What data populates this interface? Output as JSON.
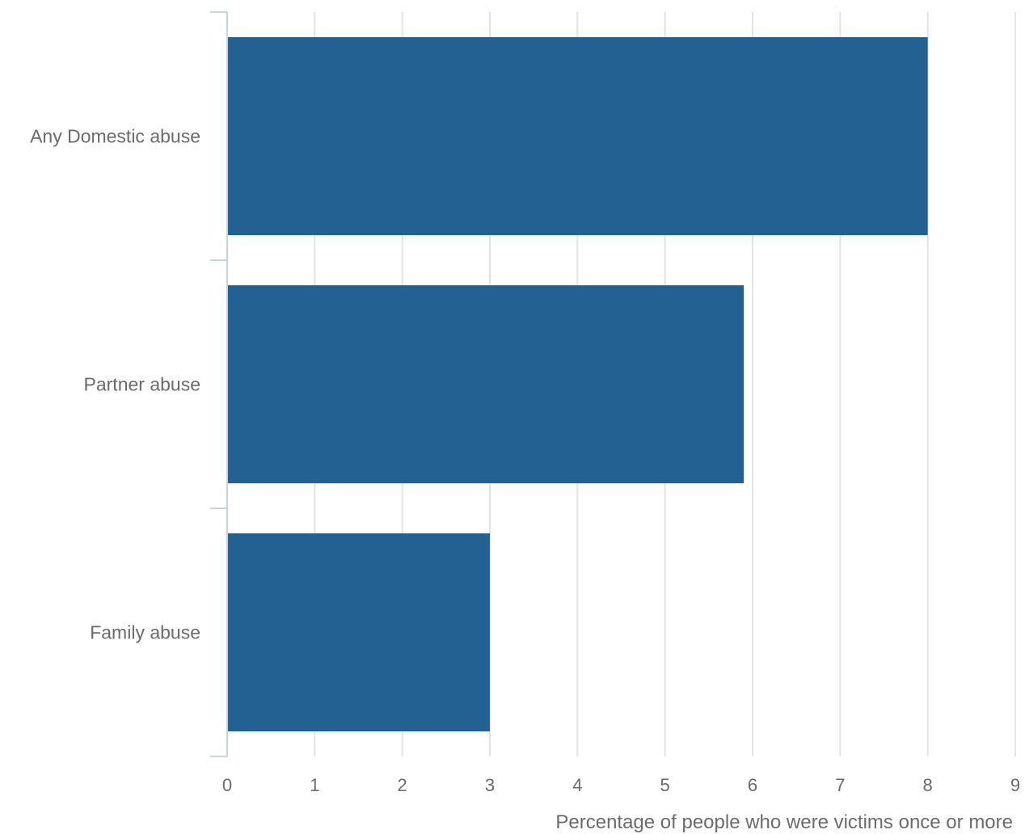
{
  "chart_data": {
    "type": "bar",
    "orientation": "horizontal",
    "categories": [
      "Any Domestic abuse",
      "Partner abuse",
      "Family abuse"
    ],
    "values": [
      8.0,
      5.9,
      3.0
    ],
    "title": "",
    "xlabel": "Percentage of people who were victims once or more",
    "ylabel": "",
    "xlim": [
      0,
      9
    ],
    "xticks": [
      "0",
      "1",
      "2",
      "3",
      "4",
      "5",
      "6",
      "7",
      "8",
      "9"
    ],
    "grid": "vertical",
    "legend": "none",
    "colors": {
      "bar": "#236192",
      "grid": "#e3e3e3",
      "axis": "#c9d3e3",
      "text": "#6b6b6b"
    }
  }
}
